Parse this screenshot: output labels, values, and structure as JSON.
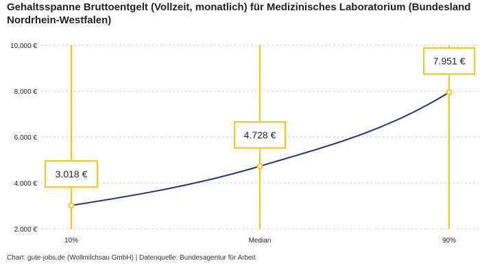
{
  "title": "Gehaltsspanne Bruttoentgelt (Vollzeit, monatlich) für Medizinisches Laboratorium (Bundesland Nordrhein-Westfalen)",
  "source": "Chart: gute-jobs.de (Wollmilchsau GmbH) | Datenquelle: Bundesagentur für Arbeit",
  "chart_data": {
    "type": "line",
    "categories": [
      "10%",
      "Median",
      "90%"
    ],
    "series": [
      {
        "values": [
          3018,
          4728,
          7951
        ]
      }
    ],
    "data_labels": [
      "3.018 €",
      "4.728 €",
      "7.951 €"
    ],
    "ylim": [
      2000,
      10000
    ],
    "yticks": [
      2000,
      4000,
      6000,
      8000,
      10000
    ],
    "ytick_labels": [
      "2.000 €",
      "4.000 €",
      "6.000 €",
      "8.000 €",
      "10.000 €"
    ],
    "grid": true,
    "colors": {
      "line": "#1f2d86",
      "marker": "#f5c518",
      "grid": "#cccccc"
    }
  }
}
